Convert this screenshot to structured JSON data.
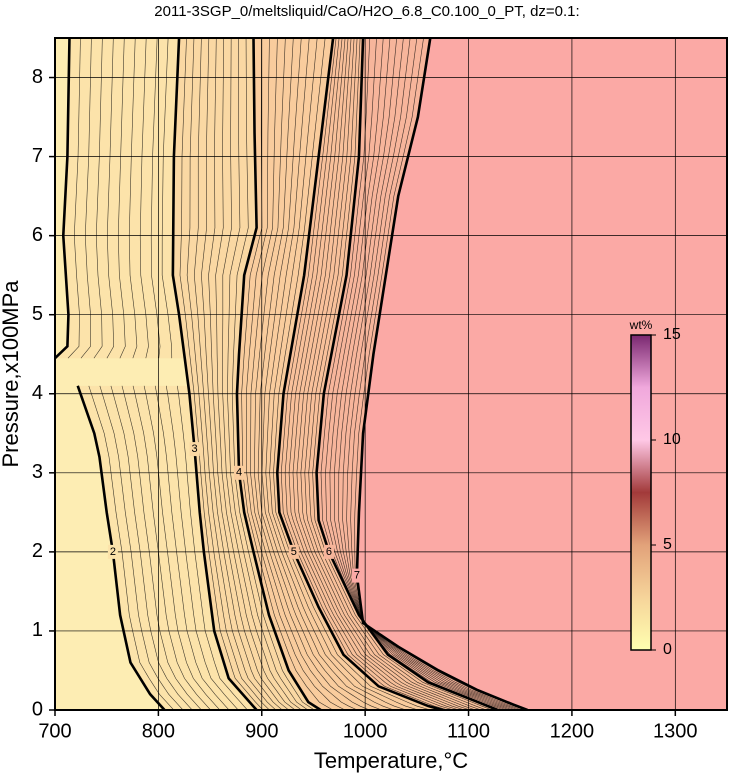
{
  "chart_data": {
    "type": "contour",
    "title": "2011-3SGP_0/meltsliquid/CaO/H2O_6.8_C0.100_0_PT, dz=0.1:",
    "x_label": "Temperature,°C",
    "y_label": "Pressure,x100MPa",
    "xlim": [
      700,
      1350
    ],
    "ylim": [
      0,
      8.5
    ],
    "xticks": [
      700,
      800,
      900,
      1000,
      1100,
      1200,
      1300
    ],
    "yticks": [
      0,
      1,
      2,
      3,
      4,
      5,
      6,
      7,
      8
    ],
    "grid": true,
    "background": "#fdedb3",
    "contours": [
      {
        "level": 2,
        "color": "#000000",
        "fill": "#fce3aa",
        "x": [
          714,
          712,
          708,
          713,
          712,
          700,
          null,
          722,
          738,
          743,
          750,
          756,
          763,
          773,
          792,
          806
        ],
        "y": [
          8.5,
          7,
          6,
          5,
          4.6,
          4.45,
          null,
          4.1,
          3.5,
          3.2,
          2.5,
          2,
          1.2,
          0.6,
          0.2,
          0
        ]
      },
      {
        "level": 3,
        "color": "#000000",
        "fill": "#fad8a3",
        "x": [
          820,
          815,
          814,
          820,
          830,
          835,
          840,
          844,
          854,
          868,
          895
        ],
        "y": [
          8.5,
          7,
          5.5,
          5,
          4,
          3.3,
          2.5,
          2,
          1,
          0.4,
          0
        ]
      },
      {
        "level": 4,
        "color": "#000000",
        "fill": "#f9cc9d",
        "x": [
          892,
          893,
          895,
          883,
          878,
          876,
          878,
          883,
          892,
          907,
          926,
          945,
          957
        ],
        "y": [
          8.5,
          7.3,
          6.1,
          5.5,
          4.5,
          4,
          3,
          2.5,
          2,
          1.2,
          0.5,
          0.1,
          0
        ]
      },
      {
        "level": 5,
        "color": "#000000",
        "fill": "#f8c09a",
        "x": [
          969,
          955,
          941,
          921,
          915,
          917,
          931,
          955,
          979,
          1013,
          1061,
          1075
        ],
        "y": [
          8.5,
          7,
          5.5,
          4,
          3,
          2.5,
          2,
          1.3,
          0.7,
          0.3,
          0.05,
          0
        ]
      },
      {
        "level": 6,
        "color": "#000000",
        "fill": "#f7b59b",
        "x": [
          998,
          994,
          982,
          960,
          953,
          955,
          965,
          994,
          1022,
          1061,
          1109,
          1128
        ],
        "y": [
          8.5,
          7,
          5.5,
          4,
          3,
          2.4,
          2,
          1.2,
          0.7,
          0.35,
          0.1,
          0
        ]
      },
      {
        "level": 7,
        "color": "#000000",
        "fill": "#fba9a5",
        "x": [
          1063,
          1051,
          1032,
          1020,
          1008,
          998,
          994,
          992,
          998,
          1032,
          1071,
          1109,
          1143,
          1157
        ],
        "y": [
          8.5,
          7.5,
          6.5,
          5.5,
          4.5,
          3.5,
          2.5,
          1.7,
          1.1,
          0.8,
          0.5,
          0.25,
          0.07,
          0
        ]
      }
    ],
    "colorbar": {
      "label": "wt%",
      "lim": [
        0,
        15
      ],
      "ticks": [
        0,
        5,
        10,
        15
      ],
      "colors": [
        "#ffffb0",
        "#f6d49a",
        "#e2a27a",
        "#a23a3a",
        "#ffc8e6",
        "#f0a8dc",
        "#7a2870"
      ]
    }
  }
}
